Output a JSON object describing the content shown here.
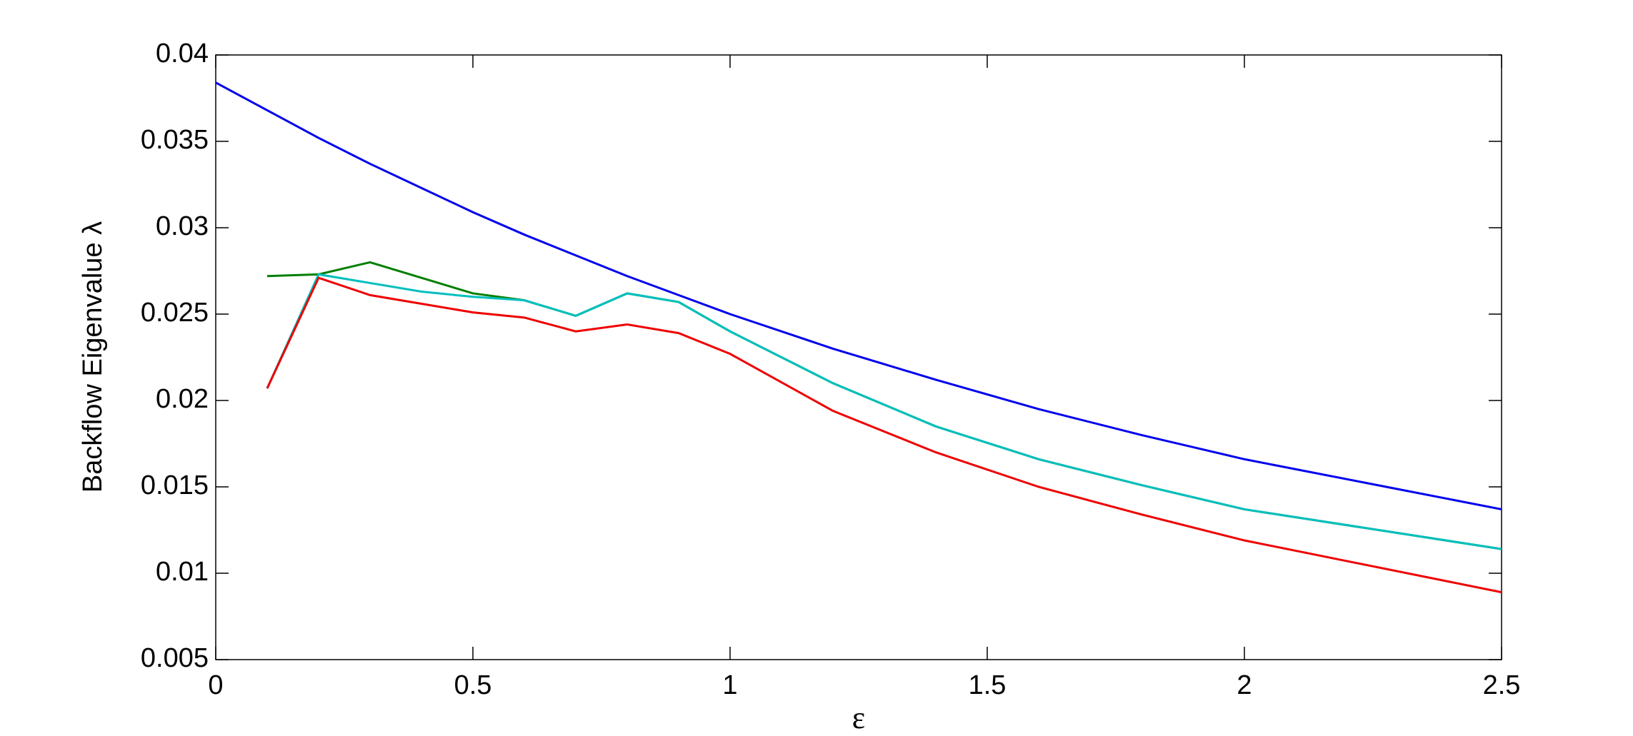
{
  "chart_data": {
    "type": "line",
    "xlabel": "ε",
    "ylabel": "Backflow Eigenvalue λ",
    "x": [
      0,
      0.1,
      0.2,
      0.3,
      0.4,
      0.5,
      0.6,
      0.7,
      0.8,
      0.9,
      1,
      1.2,
      1.4,
      1.6,
      1.8,
      2,
      2.5
    ],
    "series": [
      {
        "color": "#0000ee",
        "values": [
          0.0384,
          0.0368,
          0.0352,
          0.0337,
          0.0323,
          0.0309,
          0.0296,
          0.0284,
          0.0272,
          0.0261,
          0.025,
          0.023,
          0.0212,
          0.0195,
          0.018,
          0.0166,
          0.0137
        ]
      },
      {
        "color": "#007f00",
        "values": [
          null,
          0.0272,
          0.0273,
          0.028,
          0.0271,
          0.0262,
          0.0258,
          0.0249,
          0.0262,
          0.0257,
          0.024,
          0.021,
          0.0185,
          0.0166,
          0.0151,
          0.0137,
          0.0114
        ]
      },
      {
        "color": "#00bfbf",
        "values": [
          null,
          0.0207,
          0.0273,
          0.0268,
          0.0263,
          0.026,
          0.0258,
          0.0249,
          0.0262,
          0.0257,
          0.024,
          0.021,
          0.0185,
          0.0166,
          0.0151,
          0.0137,
          0.0114
        ]
      },
      {
        "color": "#ee0000",
        "values": [
          null,
          0.0207,
          0.0271,
          0.0261,
          0.0256,
          0.0251,
          0.0248,
          0.024,
          0.0244,
          0.0239,
          0.0227,
          0.0194,
          0.017,
          0.015,
          0.0134,
          0.0119,
          0.0089
        ]
      }
    ],
    "xlim": [
      0,
      2.5
    ],
    "xticks": [
      0,
      0.5,
      1,
      1.5,
      2,
      2.5
    ],
    "ylim": [
      0.005,
      0.04
    ],
    "yticks": [
      0.005,
      0.01,
      0.015,
      0.02,
      0.025,
      0.03,
      0.035,
      0.04
    ],
    "grid": false
  }
}
